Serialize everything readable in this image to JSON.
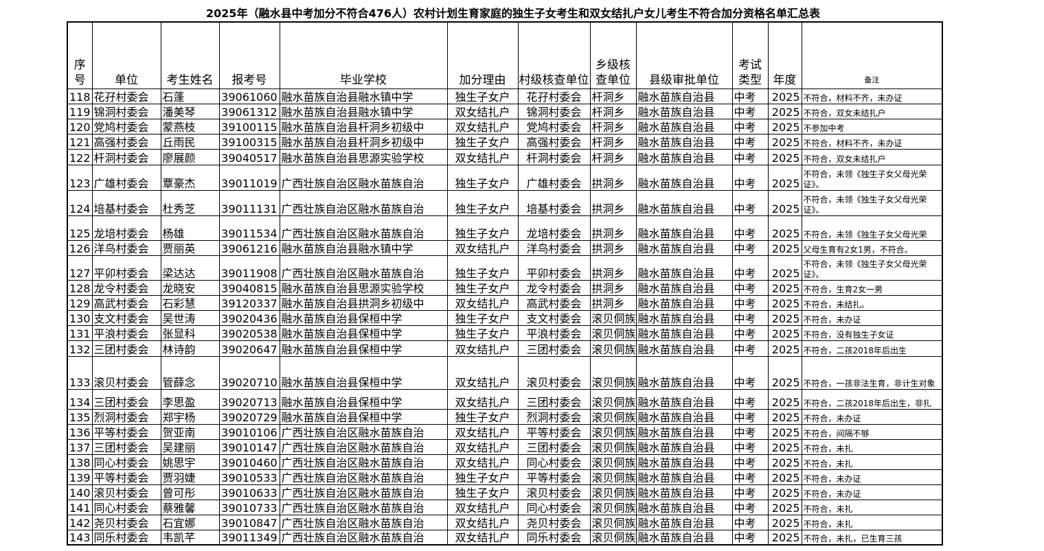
{
  "title": "2025年（融水县中考加分不符合476人）农村计划生育家庭的独生子女考生和双女结扎户女儿考生不符合加分资格名单汇总表",
  "table": {
    "headers": [
      "序号",
      "单位",
      "考生姓名",
      "报考号",
      "毕业学校",
      "加分理由",
      "村级核查单位",
      "乡级核查单位",
      "县级审批单位",
      "考试类型",
      "年度",
      "备注"
    ],
    "rows": [
      [
        118,
        "花孖村委会",
        "石蓬",
        39061060,
        "融水苗族自治县融水镇中学",
        "独生子女户",
        "花孖村委会",
        "杆洞乡",
        "融水苗族自治县",
        "中考",
        2025,
        "不符合，材料不齐，未办证"
      ],
      [
        119,
        "锦洞村委会",
        "潘美琴",
        39061312,
        "融水苗族自治县融水镇中学",
        "双女结扎户",
        "锦洞村委会",
        "杆洞乡",
        "融水苗族自治县",
        "中考",
        2025,
        "不符合，双女未结扎户"
      ],
      [
        120,
        "党鸠村委会",
        "蒙燕枝",
        39100115,
        "融水苗族自治县杆洞乡初级中",
        "双女结扎户",
        "党鸠村委会",
        "杆洞乡",
        "融水苗族自治县",
        "中考",
        2025,
        "不参加中考"
      ],
      [
        121,
        "高强村委会",
        "丘雨民",
        39100315,
        "融水苗族自治县杆洞乡初级中",
        "独生子女户",
        "高强村委会",
        "杆洞乡",
        "融水苗族自治县",
        "中考",
        2025,
        "不符合，材料不齐，未办证"
      ],
      [
        122,
        "杆洞村委会",
        "廖展颜",
        39040517,
        "融水苗族自治县思源实验学校",
        "双女结扎户",
        "杆洞村委会",
        "杆洞乡",
        "融水苗族自治县",
        "中考",
        2025,
        "不符合，双女未结扎户"
      ],
      [
        123,
        "广雄村委会",
        "覃豪杰",
        39011019,
        "广西壮族自治区融水苗族自治",
        "独生子女户",
        "广雄村委会",
        "拱洞乡",
        "融水苗族自治县",
        "中考",
        2025,
        "不符合，未领《独生子女父母光荣证》。"
      ],
      [
        124,
        "培基村委会",
        "杜秀芝",
        39011131,
        "广西壮族自治区融水苗族自治",
        "独生子女户",
        "培基村委会",
        "拱洞乡",
        "融水苗族自治县",
        "中考",
        2025,
        "不符合，未领《独生子女父母光荣证》。"
      ],
      [
        125,
        "龙培村委会",
        "杨雄",
        39011534,
        "广西壮族自治区融水苗族自治",
        "独生子女户",
        "龙培村委会",
        "拱洞乡",
        "融水苗族自治县",
        "中考",
        2025,
        "不符合，未领《独生子女父母光荣"
      ],
      [
        126,
        "洋鸟村委会",
        "贾丽英",
        39061216,
        "融水苗族自治县融水镇中学",
        "双女结扎户",
        "洋鸟村委会",
        "拱洞乡",
        "融水苗族自治县",
        "中考",
        2025,
        "父母生育有2女1男，不符合。"
      ],
      [
        127,
        "平卯村委会",
        "梁达达",
        39011908,
        "广西壮族自治区融水苗族自治",
        "独生子女户",
        "平卯村委会",
        "拱洞乡",
        "融水苗族自治县",
        "中考",
        2025,
        "不符合，未领《独生子女父母光荣证》。"
      ],
      [
        128,
        "龙令村委会",
        "龙晓安",
        39040815,
        "融水苗族自治县思源实验学校",
        "独生子女户",
        "龙令村委会",
        "拱洞乡",
        "融水苗族自治县",
        "中考",
        2025,
        "不符合，生育2女一男"
      ],
      [
        129,
        "高武村委会",
        "石彩慧",
        39120337,
        "融水苗族自治县拱洞乡初级中",
        "双女结扎户",
        "高武村委会",
        "拱洞乡",
        "融水苗族自治县",
        "中考",
        2025,
        "不符合，未结扎。"
      ],
      [
        130,
        "支文村委会",
        "吴世涛",
        39020436,
        "融水苗族自治县保桓中学",
        "独生子女户",
        "支文村委会",
        "滚贝侗族",
        "融水苗族自治县",
        "中考",
        2025,
        "不符合，未办证"
      ],
      [
        131,
        "平浪村委会",
        "张显科",
        39020538,
        "融水苗族自治县保桓中学",
        "独生子女户",
        "平浪村委会",
        "滚贝侗族",
        "融水苗族自治县",
        "中考",
        2025,
        "不符合，没有独生子女证"
      ],
      [
        132,
        "三团村委会",
        "林诗韵",
        39020647,
        "融水苗族自治县保桓中学",
        "双女结扎户",
        "三团村委会",
        "滚贝侗族",
        "融水苗族自治县",
        "中考",
        2025,
        "不符合，二孩2018年后出生"
      ],
      [
        133,
        "滚贝村委会",
        "管薛念",
        39020710,
        "融水苗族自治县保桓中学",
        "双女结扎户",
        "滚贝村委会",
        "滚贝侗族",
        "融水苗族自治县",
        "中考",
        2025,
        "不符合，一孩非法生育，非计生对象"
      ],
      [
        134,
        "三团村委会",
        "李思盈",
        39020713,
        "融水苗族自治县保桓中学",
        "双女结扎户",
        "三团村委会",
        "滚贝侗族",
        "融水苗族自治县",
        "中考",
        2025,
        "不符合，二孩2018年后出生，非扎"
      ],
      [
        135,
        "烈洞村委会",
        "郑宇杨",
        39020729,
        "融水苗族自治县保桓中学",
        "独生子女户",
        "烈洞村委会",
        "滚贝侗族",
        "融水苗族自治县",
        "中考",
        2025,
        "不符合，未办证"
      ],
      [
        136,
        "平等村委会",
        "贺亚南",
        39010106,
        "广西壮族自治区融水苗族自治",
        "双女结扎户",
        "平等村委会",
        "滚贝侗族",
        "融水苗族自治县",
        "中考",
        2025,
        "不符合，间隔不够"
      ],
      [
        137,
        "三团村委会",
        "吴建丽",
        39010147,
        "广西壮族自治区融水苗族自治",
        "双女结扎户",
        "三团村委会",
        "滚贝侗族",
        "融水苗族自治县",
        "中考",
        2025,
        "不符合，未扎"
      ],
      [
        138,
        "同心村委会",
        "姚思宇",
        39010460,
        "广西壮族自治区融水苗族自治",
        "双女结扎户",
        "同心村委会",
        "滚贝侗族",
        "融水苗族自治县",
        "中考",
        2025,
        "不符合，未扎"
      ],
      [
        139,
        "平等村委会",
        "贾羽婕",
        39010533,
        "广西壮族自治区融水苗族自治",
        "独生子女户",
        "平等村委会",
        "滚贝侗族",
        "融水苗族自治县",
        "中考",
        2025,
        "不符合，未办证"
      ],
      [
        140,
        "滚贝村委会",
        "曾可彤",
        39010633,
        "广西壮族自治区融水苗族自治",
        "独生子女户",
        "滚贝村委会",
        "滚贝侗族",
        "融水苗族自治县",
        "中考",
        2025,
        "不符合，未办证"
      ],
      [
        141,
        "同心村委会",
        "蔡雅馨",
        39010733,
        "广西壮族自治区融水苗族自治",
        "双女结扎户",
        "同心村委会",
        "滚贝侗族",
        "融水苗族自治县",
        "中考",
        2025,
        "不符合，未扎"
      ],
      [
        142,
        "尧贝村委会",
        "石宜娜",
        39010847,
        "广西壮族自治区融水苗族自治",
        "双女结扎户",
        "尧贝村委会",
        "滚贝侗族",
        "融水苗族自治县",
        "中考",
        2025,
        "不符合，未扎"
      ],
      [
        143,
        "同乐村委会",
        "韦凯芊",
        39011349,
        "广西壮族自治区融水苗族自治",
        "双女结扎户",
        "同乐村委会",
        "滚贝侗族",
        "融水苗族自治县",
        "中考",
        2025,
        "不符合，未扎，已生育三孩"
      ]
    ]
  }
}
